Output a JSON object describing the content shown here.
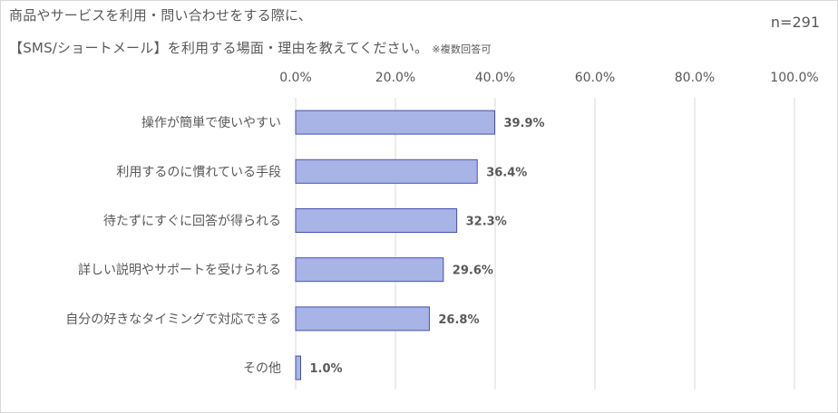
{
  "title_line1": "商品やサービスを利用・問い合わせをする際に、",
  "title_line2": "【SMS/ショートメール】を利用する場面・理由を教えてください。",
  "title_note": "※複数回答可",
  "sample_size": "n=291",
  "colors": {
    "bar_fill": "#a9b4e6",
    "bar_stroke": "#4350b0",
    "grid": "#d9d9d9",
    "text": "#595959"
  },
  "chart_data": {
    "type": "bar",
    "orientation": "horizontal",
    "categories": [
      "操作が簡単で使いやすい",
      "利用するのに慣れている手段",
      "待たずにすぐに回答が得られる",
      "詳しい説明やサポートを受けられる",
      "自分の好きなタイミングで対応できる",
      "その他"
    ],
    "values": [
      39.9,
      36.4,
      32.3,
      29.6,
      26.8,
      1.0
    ],
    "value_labels": [
      "39.9%",
      "36.4%",
      "32.3%",
      "29.6%",
      "26.8%",
      "1.0%"
    ],
    "xlim": [
      0,
      100
    ],
    "x_ticks": [
      "0.0%",
      "20.0%",
      "40.0%",
      "60.0%",
      "80.0%",
      "100.0%"
    ],
    "grid": true,
    "axis_position": "top"
  }
}
